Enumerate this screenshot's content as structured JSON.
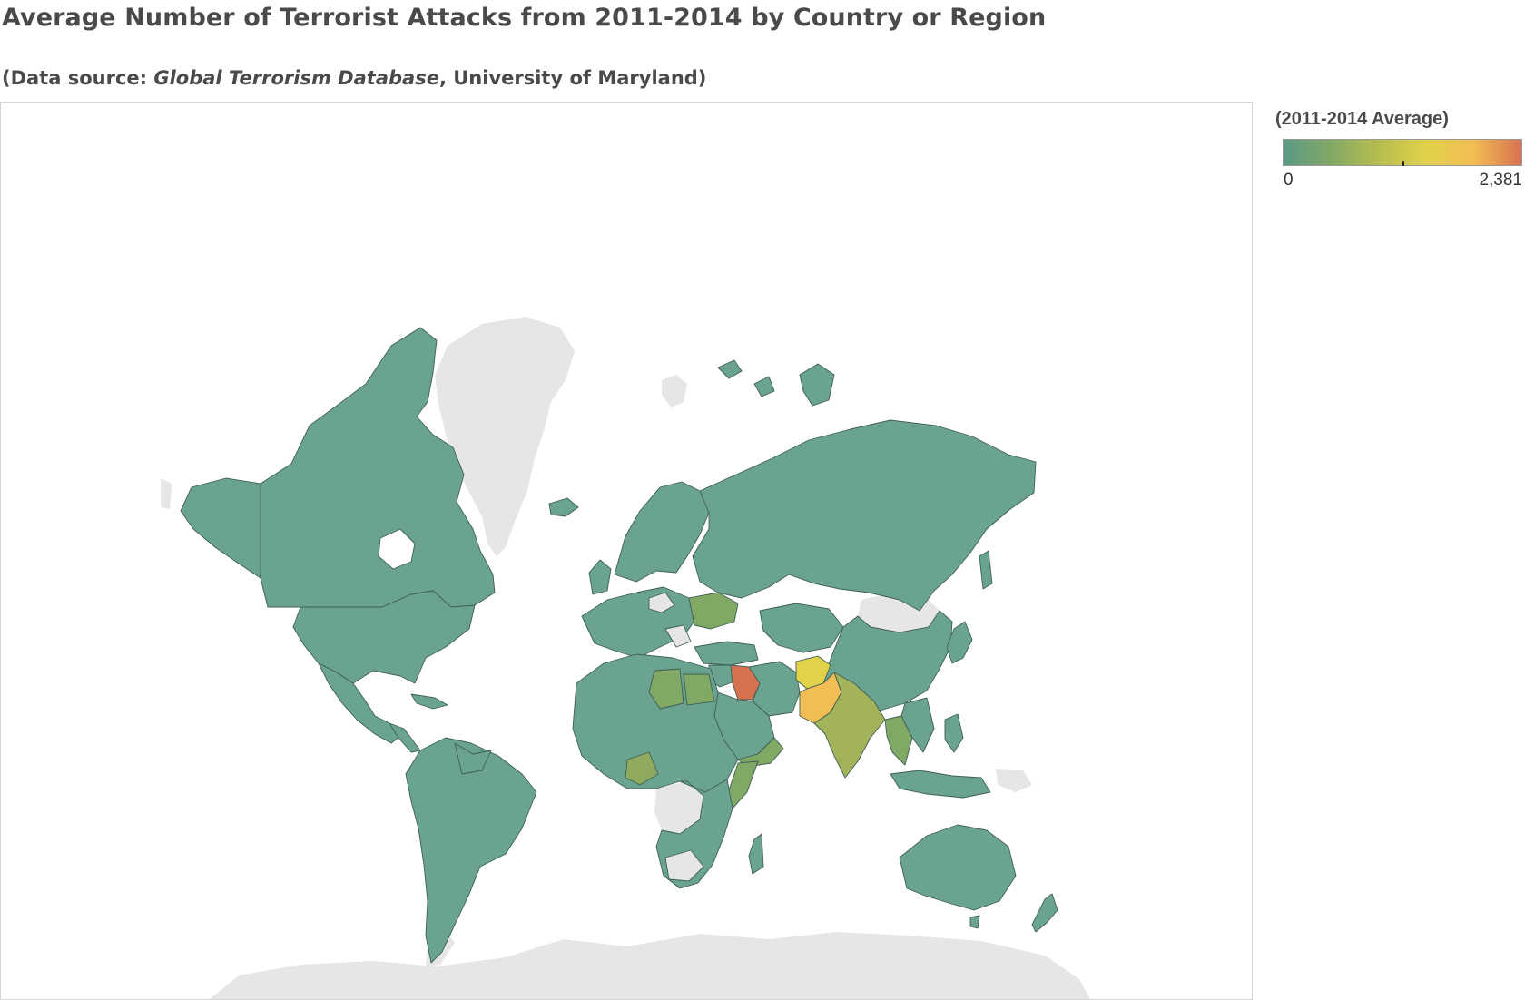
{
  "title": "Average Number of Terrorist Attacks from 2011-2014 by Country or Region",
  "subtitle": {
    "prefix": "(Data source: ",
    "source_name": "Global Terrorism Database",
    "suffix": ", University of Maryland)"
  },
  "legend": {
    "title": "(2011-2014 Average)",
    "min_label": "0",
    "max_label": "2,381",
    "min_value": 0,
    "max_value": 2381,
    "colors": [
      "#5b9a85",
      "#82a866",
      "#b6bd4f",
      "#e2d24a",
      "#f2bd55",
      "#d87150"
    ]
  },
  "map": {
    "projection": "Mercator",
    "no_data_color": "#e6e6e6",
    "border_color": "#3f5e55",
    "regions": [
      {
        "name": "Canada",
        "level": "low"
      },
      {
        "name": "United States",
        "level": "low"
      },
      {
        "name": "Mexico",
        "level": "low"
      },
      {
        "name": "South America",
        "level": "low"
      },
      {
        "name": "Russia",
        "level": "low"
      },
      {
        "name": "China",
        "level": "low"
      },
      {
        "name": "Australia",
        "level": "low"
      },
      {
        "name": "Africa",
        "level": "low"
      },
      {
        "name": "Egypt",
        "level": "low-mid"
      },
      {
        "name": "Libya",
        "level": "low-mid"
      },
      {
        "name": "Nigeria",
        "level": "low-mid"
      },
      {
        "name": "Somalia",
        "level": "low-mid"
      },
      {
        "name": "Ukraine",
        "level": "low-mid"
      },
      {
        "name": "Yemen",
        "level": "low-mid"
      },
      {
        "name": "Thailand",
        "level": "low-mid"
      },
      {
        "name": "India",
        "level": "mid"
      },
      {
        "name": "Afghanistan",
        "level": "high"
      },
      {
        "name": "Pakistan",
        "level": "high"
      },
      {
        "name": "Iraq",
        "level": "max"
      },
      {
        "name": "Greenland",
        "level": "no-data"
      },
      {
        "name": "Antarctica",
        "level": "no-data"
      },
      {
        "name": "Mongolia",
        "level": "no-data"
      }
    ]
  }
}
